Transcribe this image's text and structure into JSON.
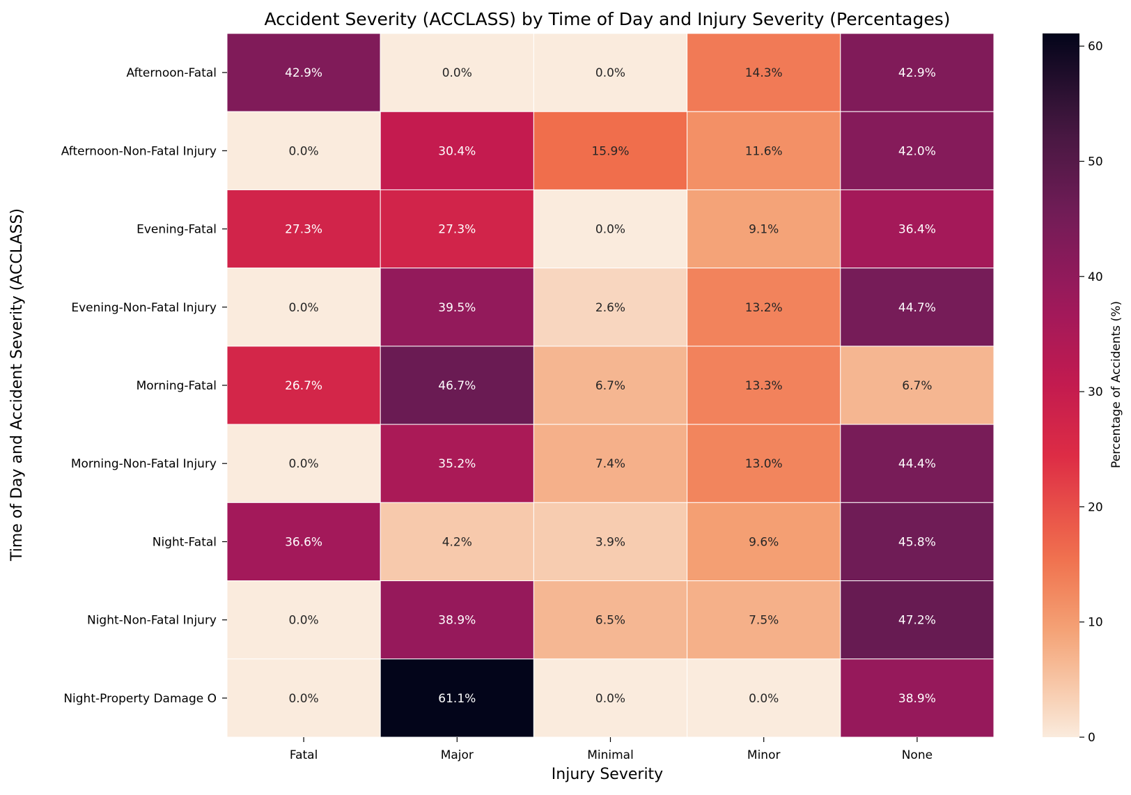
{
  "chart_data": {
    "type": "heatmap",
    "title": "Accident Severity (ACCLASS) by Time of Day and Injury Severity (Percentages)",
    "xlabel": "Injury Severity",
    "ylabel": "Time of Day and Accident Severity (ACCLASS)",
    "colorbar_label": "Percentage of Accidents (%)",
    "columns": [
      "Fatal",
      "Major",
      "Minimal",
      "Minor",
      "None"
    ],
    "rows": [
      "Afternoon-Fatal",
      "Afternoon-Non-Fatal Injury",
      "Evening-Fatal",
      "Evening-Non-Fatal Injury",
      "Morning-Fatal",
      "Morning-Non-Fatal Injury",
      "Night-Fatal",
      "Night-Non-Fatal Injury",
      "Night-Property Damage O"
    ],
    "values": [
      [
        42.9,
        0.0,
        0.0,
        14.3,
        42.9
      ],
      [
        0.0,
        30.4,
        15.9,
        11.6,
        42.0
      ],
      [
        27.3,
        27.3,
        0.0,
        9.1,
        36.4
      ],
      [
        0.0,
        39.5,
        2.6,
        13.2,
        44.7
      ],
      [
        26.7,
        46.7,
        6.7,
        13.3,
        6.7
      ],
      [
        0.0,
        35.2,
        7.4,
        13.0,
        44.4
      ],
      [
        36.6,
        4.2,
        3.9,
        9.6,
        45.8
      ],
      [
        0.0,
        38.9,
        6.5,
        7.5,
        47.2
      ],
      [
        0.0,
        61.1,
        0.0,
        0.0,
        38.9
      ]
    ],
    "value_format": "{v}%",
    "vmin": 0,
    "vmax": 61.1,
    "colorbar_ticks": [
      0,
      10,
      20,
      30,
      40,
      50,
      60
    ],
    "colormap": "rocket_r"
  }
}
